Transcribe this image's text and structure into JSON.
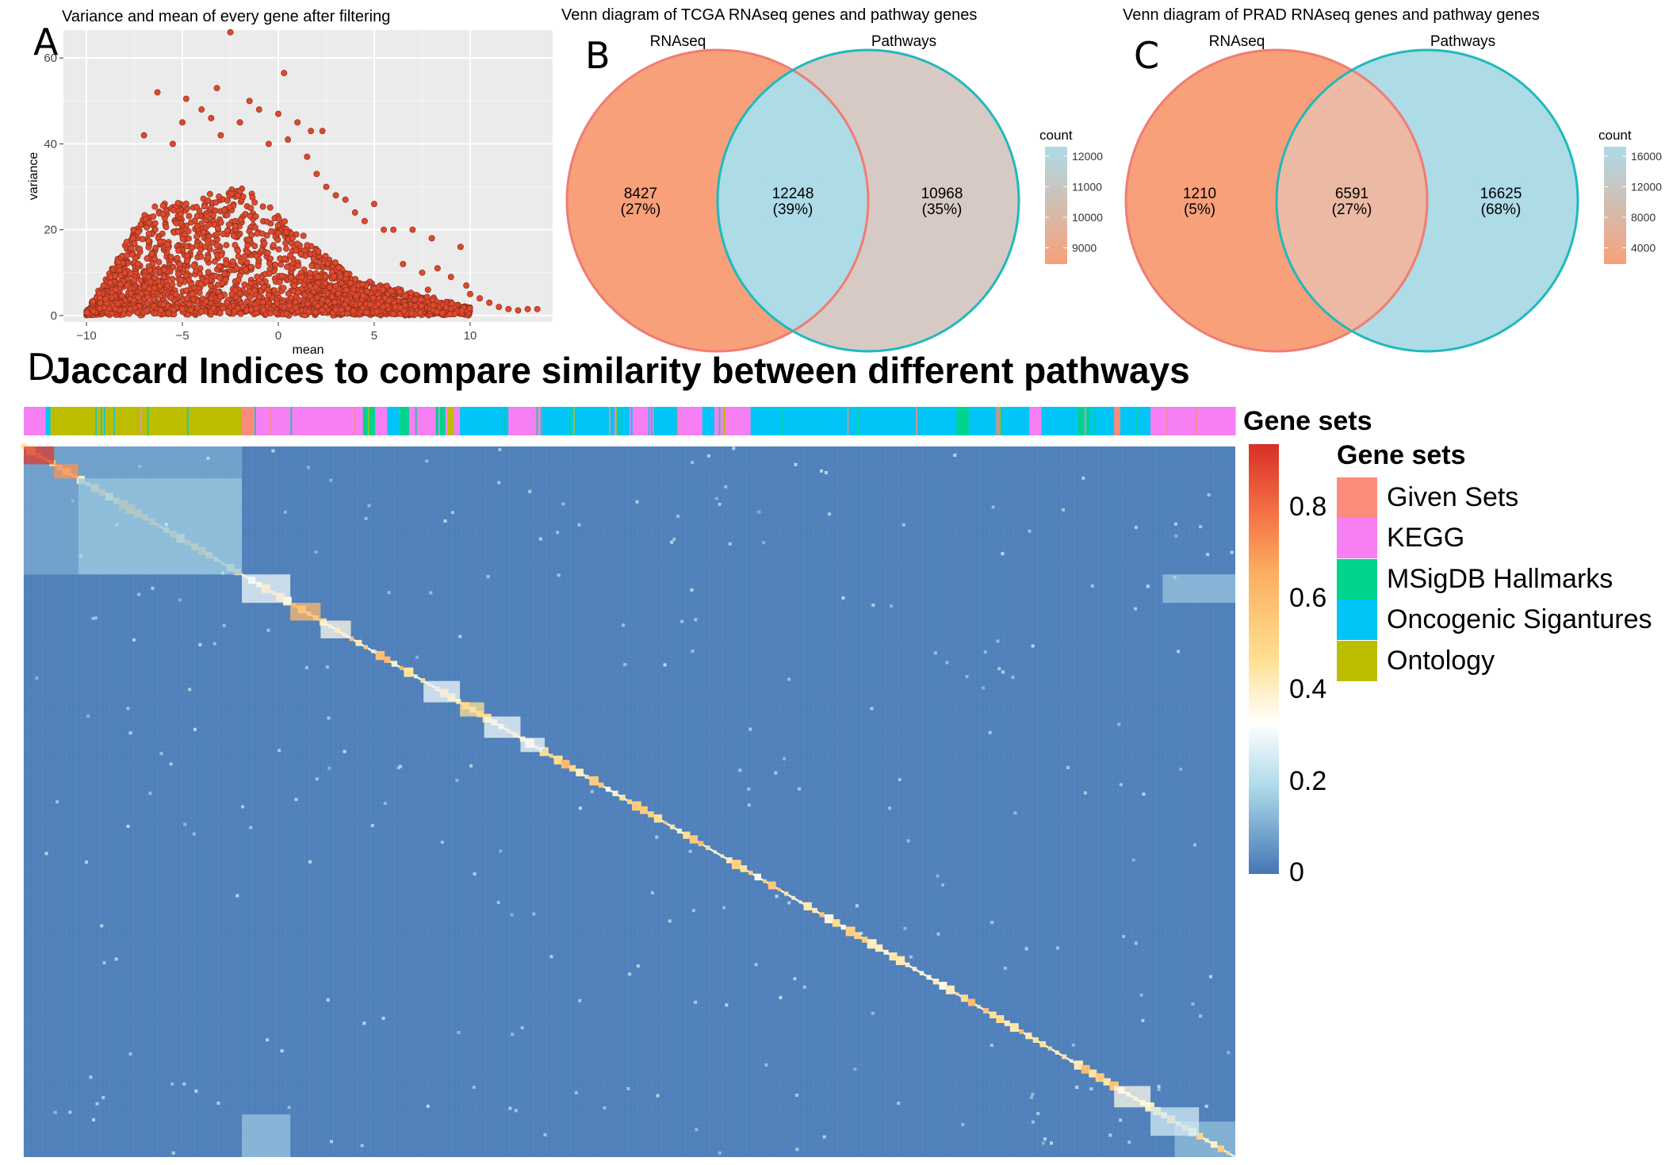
{
  "panels": {
    "A": "A",
    "B": "B",
    "C": "C",
    "D": "D"
  },
  "chart_data": [
    {
      "id": "A",
      "type": "scatter",
      "title": "Variance and mean of every gene after filtering",
      "xlabel": "mean",
      "ylabel": "variance",
      "xlim": [
        -11.2,
        14.3
      ],
      "ylim": [
        -1.5,
        66.5
      ],
      "xticks": [
        -10,
        -5,
        0,
        5,
        10
      ],
      "yticks": [
        0,
        20,
        40,
        60
      ],
      "grid": true,
      "point_color": "#dd4a2e",
      "point_edge": "#8a2a1a",
      "panel_bg": "#ebebeb",
      "outliers": [
        {
          "x": -2.5,
          "y": 66
        },
        {
          "x": 0.3,
          "y": 56.5
        },
        {
          "x": -3.2,
          "y": 53
        },
        {
          "x": -6.3,
          "y": 52
        },
        {
          "x": -4.8,
          "y": 50.5
        },
        {
          "x": -1.5,
          "y": 50
        },
        {
          "x": -4,
          "y": 48
        },
        {
          "x": -1,
          "y": 48
        },
        {
          "x": -3.5,
          "y": 46
        },
        {
          "x": 0,
          "y": 47
        },
        {
          "x": -2,
          "y": 45
        },
        {
          "x": -5,
          "y": 45
        },
        {
          "x": 1,
          "y": 45
        },
        {
          "x": 1.7,
          "y": 43
        },
        {
          "x": 2.3,
          "y": 43
        },
        {
          "x": -7,
          "y": 42
        },
        {
          "x": 0.5,
          "y": 41
        },
        {
          "x": -5.5,
          "y": 40
        },
        {
          "x": -3,
          "y": 42
        },
        {
          "x": 2.5,
          "y": 30
        },
        {
          "x": 3,
          "y": 28
        },
        {
          "x": 3.5,
          "y": 27
        },
        {
          "x": 5,
          "y": 26
        },
        {
          "x": 4,
          "y": 24
        },
        {
          "x": 4.5,
          "y": 22
        },
        {
          "x": 5.5,
          "y": 20
        },
        {
          "x": 6,
          "y": 20
        },
        {
          "x": 7,
          "y": 20
        },
        {
          "x": 8,
          "y": 18
        },
        {
          "x": 9.5,
          "y": 16
        },
        {
          "x": 8.3,
          "y": 11
        },
        {
          "x": 9,
          "y": 9
        },
        {
          "x": 10,
          "y": 5
        },
        {
          "x": 10.5,
          "y": 4
        },
        {
          "x": 11.5,
          "y": 2
        },
        {
          "x": 12,
          "y": 1.5
        },
        {
          "x": 12.5,
          "y": 1.2
        },
        {
          "x": 13,
          "y": 1.5
        },
        {
          "x": 13.5,
          "y": 1.5
        },
        {
          "x": 6.5,
          "y": 12
        },
        {
          "x": 7.5,
          "y": 10
        },
        {
          "x": 1.5,
          "y": 37
        },
        {
          "x": 2,
          "y": 33
        },
        {
          "x": -0.5,
          "y": 40
        },
        {
          "x": 11,
          "y": 3
        },
        {
          "x": 9.8,
          "y": 7
        },
        {
          "x": 7.8,
          "y": 6
        }
      ]
    },
    {
      "id": "B",
      "type": "venn",
      "title": "Venn diagram of TCGA RNAseq genes and pathway genes",
      "sets": [
        "RNAseq",
        "Pathways"
      ],
      "regions": [
        {
          "count": "8427",
          "pct": "(27%)",
          "fill": "#f8a07a"
        },
        {
          "count": "12248",
          "pct": "(39%)",
          "fill": "#addbe6"
        },
        {
          "count": "10968",
          "pct": "(35%)",
          "fill": "#d7cac4"
        }
      ],
      "legend": {
        "title": "count",
        "ticks": [
          "12000",
          "11000",
          "10000",
          "9000"
        ],
        "low": "#f8a07a",
        "high": "#addbe6"
      }
    },
    {
      "id": "C",
      "type": "venn",
      "title": "Venn diagram of PRAD RNAseq genes and pathway genes",
      "sets": [
        "RNAseq",
        "Pathways"
      ],
      "regions": [
        {
          "count": "1210",
          "pct": "(5%)",
          "fill": "#f8a07a"
        },
        {
          "count": "6591",
          "pct": "(27%)",
          "fill": "#ebb9a4"
        },
        {
          "count": "16625",
          "pct": "(68%)",
          "fill": "#addbe6"
        }
      ],
      "legend": {
        "title": "count",
        "ticks": [
          "16000",
          "12000",
          "8000",
          "4000"
        ],
        "low": "#f8a07a",
        "high": "#addbe6"
      }
    },
    {
      "id": "D",
      "type": "heatmap",
      "title": "Jaccard Indices to compare similarity between different pathways",
      "annotation_title": "Gene sets",
      "legend_title": "Gene sets",
      "colorbar_ticks": [
        "0.8",
        "0.6",
        "0.4",
        "0.2",
        "0"
      ],
      "value_range": [
        0,
        0.92
      ],
      "background_value": 0.02,
      "categories": [
        {
          "name": "Given Sets",
          "color": "#fb8c7b"
        },
        {
          "name": "KEGG",
          "color": "#f57ff3"
        },
        {
          "name": "MSigDB Hallmarks",
          "color": "#00d38e"
        },
        {
          "name": "Oncogenic Sigantures",
          "color": "#00c5f6"
        },
        {
          "name": "Ontology",
          "color": "#bdbd00"
        }
      ],
      "annotation_segments": [
        {
          "cat": "KEGG",
          "from": 0.0,
          "to": 0.018
        },
        {
          "cat": "Oncogenic Sigantures",
          "from": 0.018,
          "to": 0.022
        },
        {
          "cat": "Ontology",
          "from": 0.022,
          "to": 0.18
        },
        {
          "cat": "Given Sets",
          "from": 0.18,
          "to": 0.19
        },
        {
          "cat": "KEGG",
          "from": 0.19,
          "to": 0.28
        },
        {
          "cat": "MSigDB Hallmarks",
          "from": 0.28,
          "to": 0.29
        },
        {
          "cat": "KEGG",
          "from": 0.29,
          "to": 0.3
        },
        {
          "cat": "Oncogenic Sigantures",
          "from": 0.3,
          "to": 0.31
        },
        {
          "cat": "MSigDB Hallmarks",
          "from": 0.31,
          "to": 0.318
        },
        {
          "cat": "KEGG",
          "from": 0.318,
          "to": 0.34
        },
        {
          "cat": "MSigDB Hallmarks",
          "from": 0.34,
          "to": 0.348
        },
        {
          "cat": "KEGG",
          "from": 0.348,
          "to": 0.35
        },
        {
          "cat": "Ontology",
          "from": 0.35,
          "to": 0.355
        },
        {
          "cat": "KEGG",
          "from": 0.355,
          "to": 0.36
        },
        {
          "cat": "Oncogenic Sigantures",
          "from": 0.36,
          "to": 0.4
        },
        {
          "cat": "KEGG",
          "from": 0.4,
          "to": 0.428
        },
        {
          "cat": "Oncogenic Sigantures",
          "from": 0.428,
          "to": 0.5
        },
        {
          "cat": "KEGG",
          "from": 0.5,
          "to": 0.52
        },
        {
          "cat": "Oncogenic Sigantures",
          "from": 0.52,
          "to": 0.54
        },
        {
          "cat": "KEGG",
          "from": 0.54,
          "to": 0.56
        },
        {
          "cat": "Oncogenic Sigantures",
          "from": 0.56,
          "to": 0.57
        },
        {
          "cat": "KEGG",
          "from": 0.57,
          "to": 0.6
        },
        {
          "cat": "Oncogenic Sigantures",
          "from": 0.6,
          "to": 0.77
        },
        {
          "cat": "MSigDB Hallmarks",
          "from": 0.77,
          "to": 0.78
        },
        {
          "cat": "Oncogenic Sigantures",
          "from": 0.78,
          "to": 0.83
        },
        {
          "cat": "KEGG",
          "from": 0.83,
          "to": 0.84
        },
        {
          "cat": "Oncogenic Sigantures",
          "from": 0.84,
          "to": 0.87
        },
        {
          "cat": "MSigDB Hallmarks",
          "from": 0.87,
          "to": 0.88
        },
        {
          "cat": "Oncogenic Sigantures",
          "from": 0.88,
          "to": 0.9
        },
        {
          "cat": "Given Sets",
          "from": 0.9,
          "to": 0.905
        },
        {
          "cat": "Oncogenic Sigantures",
          "from": 0.905,
          "to": 0.93
        },
        {
          "cat": "KEGG",
          "from": 0.93,
          "to": 1.0
        }
      ],
      "diagonal_blocks": [
        {
          "from": 0.0,
          "to": 0.025,
          "value": 0.9
        },
        {
          "from": 0.025,
          "to": 0.045,
          "value": 0.7
        },
        {
          "from": 0.045,
          "to": 0.18,
          "value": 0.15
        },
        {
          "from": 0.18,
          "to": 0.22,
          "value": 0.3
        },
        {
          "from": 0.22,
          "to": 0.245,
          "value": 0.6
        },
        {
          "from": 0.245,
          "to": 0.27,
          "value": 0.35
        },
        {
          "from": 0.33,
          "to": 0.36,
          "value": 0.3
        },
        {
          "from": 0.36,
          "to": 0.38,
          "value": 0.45
        },
        {
          "from": 0.38,
          "to": 0.41,
          "value": 0.3
        },
        {
          "from": 0.41,
          "to": 0.43,
          "value": 0.3
        },
        {
          "from": 0.9,
          "to": 0.93,
          "value": 0.35
        },
        {
          "from": 0.93,
          "to": 0.97,
          "value": 0.25
        }
      ],
      "offdiag_blocks": [
        {
          "rows": [
            0.0,
            0.18
          ],
          "cols": [
            0.0,
            0.18
          ],
          "value": 0.13
        },
        {
          "rows": [
            0.94,
            1.0
          ],
          "cols": [
            0.18,
            0.22
          ],
          "value": 0.2
        },
        {
          "rows": [
            0.18,
            0.22
          ],
          "cols": [
            0.94,
            1.0
          ],
          "value": 0.2
        },
        {
          "rows": [
            0.95,
            1.0
          ],
          "cols": [
            0.95,
            1.0
          ],
          "value": 0.18
        }
      ]
    }
  ]
}
